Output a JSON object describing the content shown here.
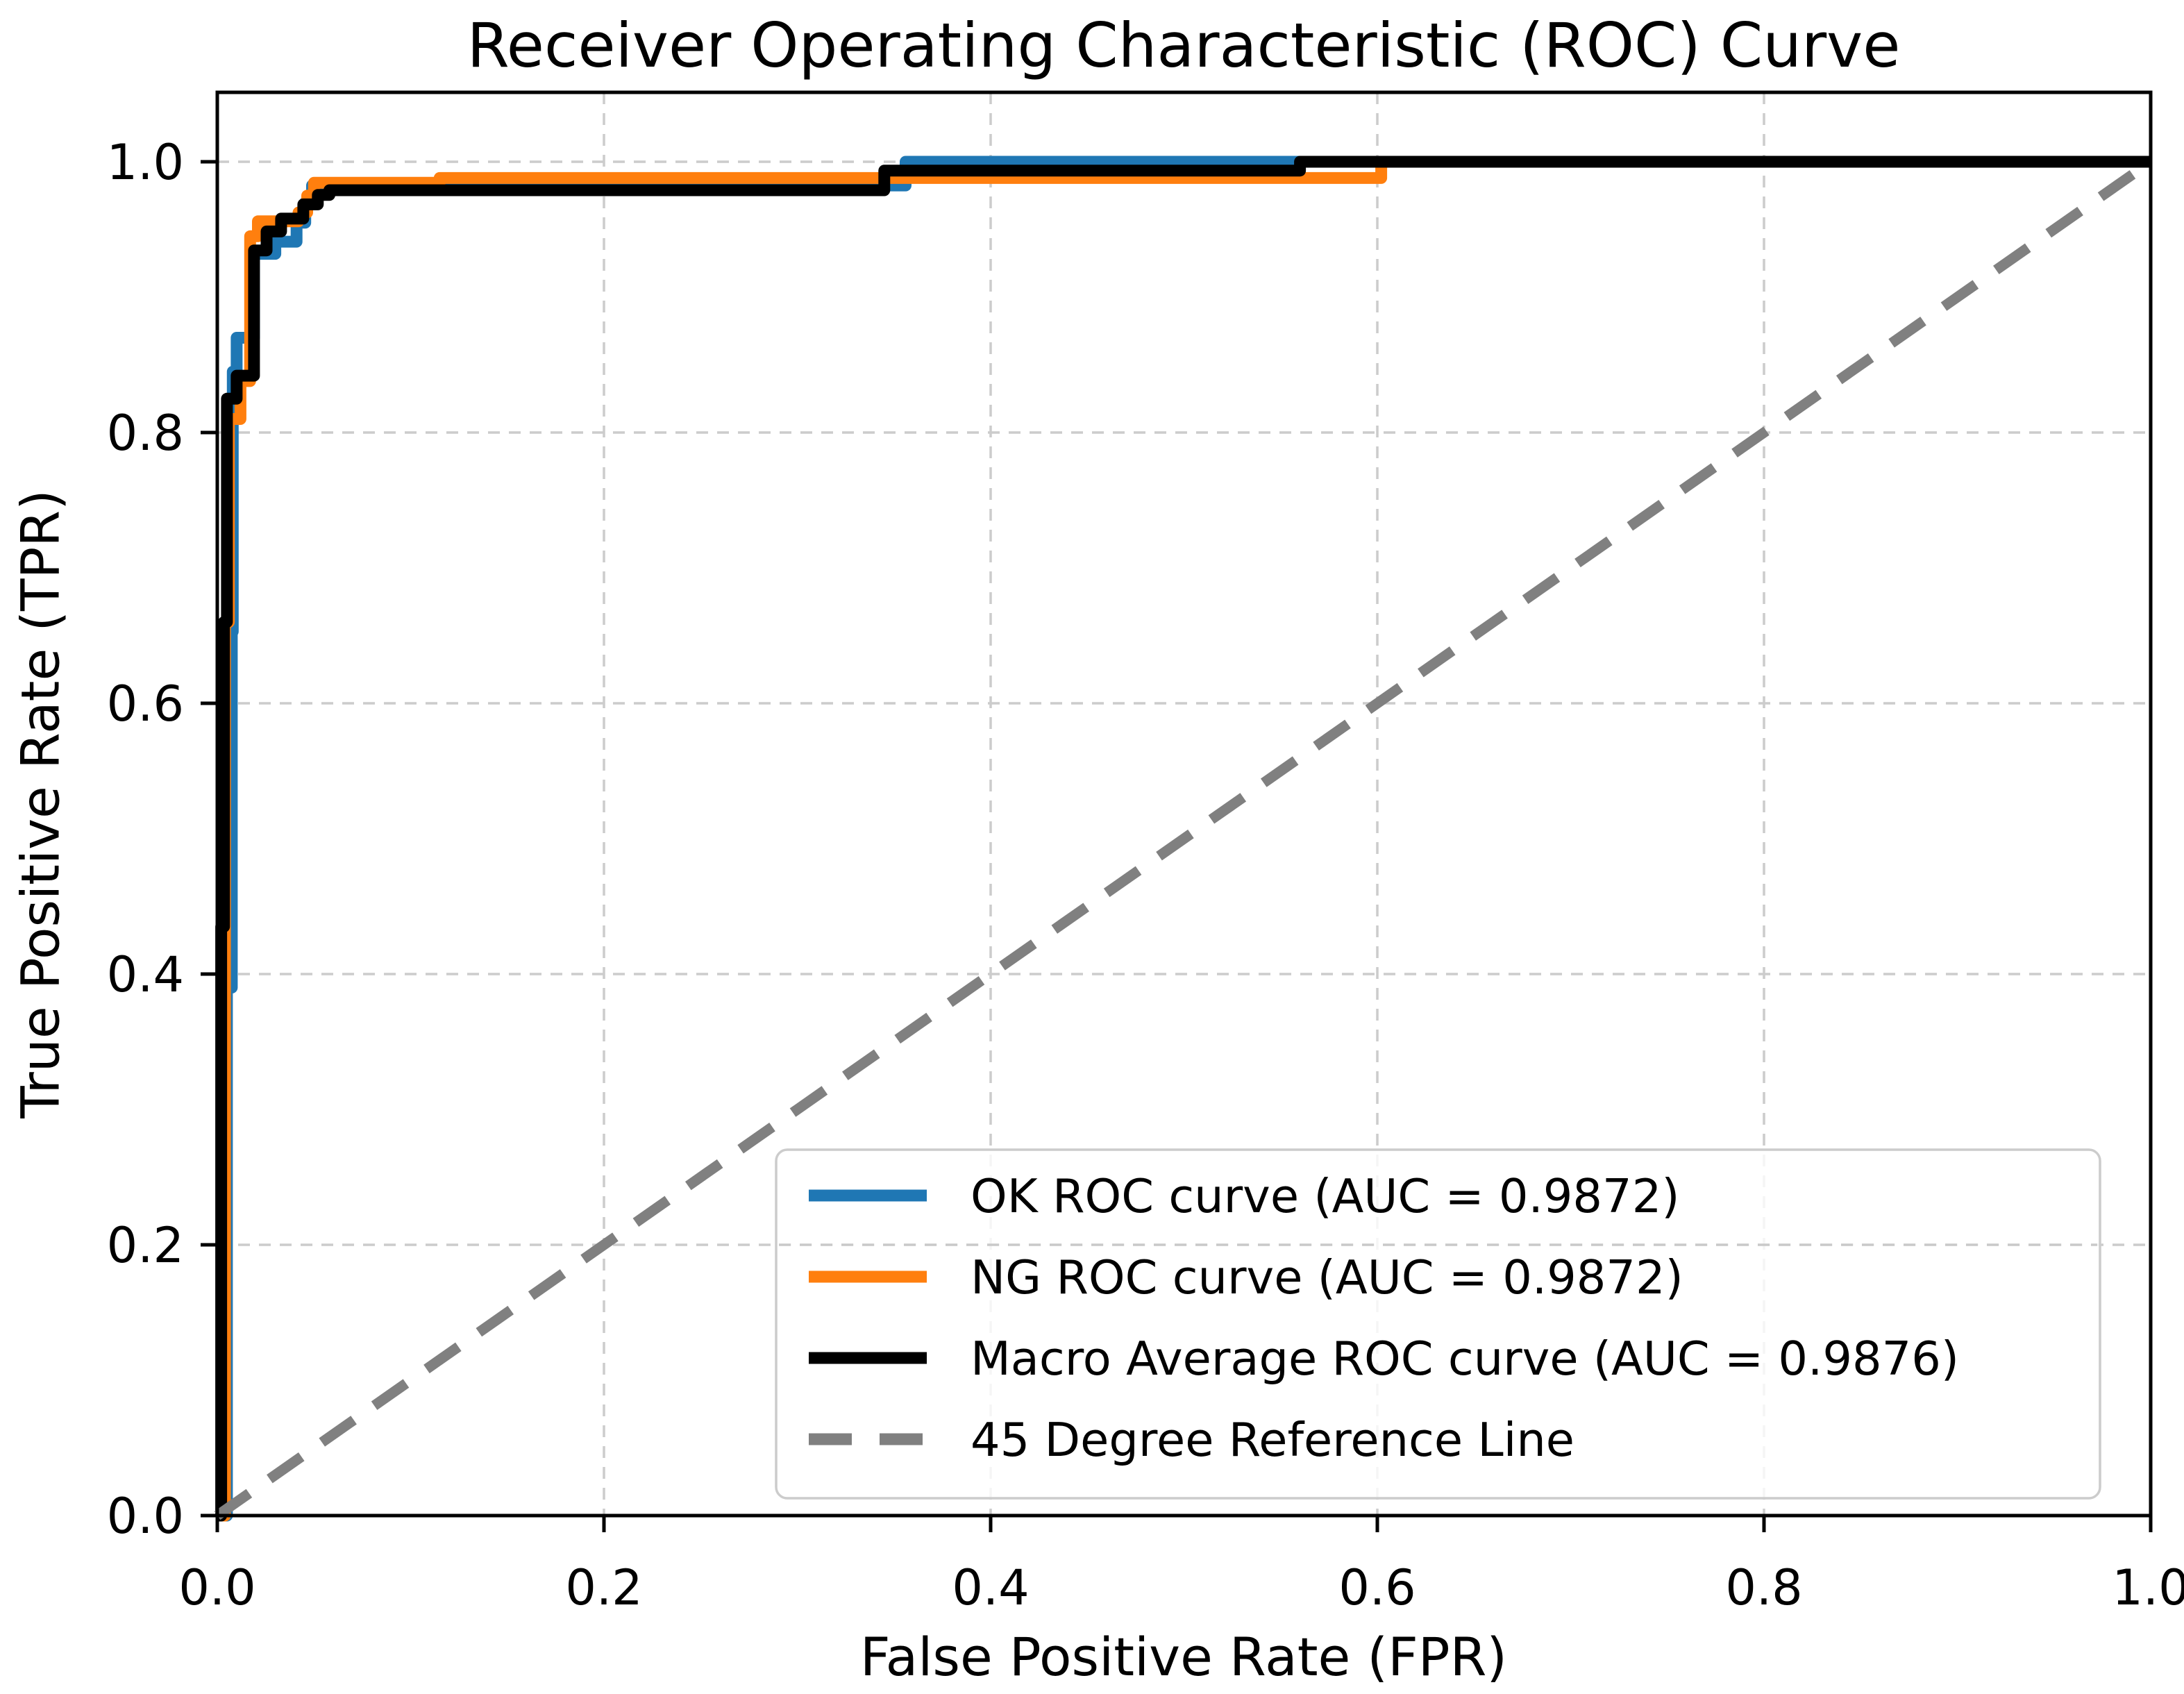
{
  "chart_data": {
    "type": "line",
    "subtype": "roc-step-curves",
    "title": "Receiver Operating Characteristic (ROC) Curve",
    "xlabel": "False Positive Rate (FPR)",
    "ylabel": "True Positive Rate (TPR)",
    "xlim": [
      0.0,
      1.0
    ],
    "ylim": [
      0.0,
      1.05
    ],
    "grid": true,
    "grid_color": "#cccccc",
    "grid_style": "dashed",
    "xticks": {
      "values": [
        0.0,
        0.2,
        0.4,
        0.6,
        0.8,
        1.0
      ],
      "labels": [
        "0.0",
        "0.2",
        "0.4",
        "0.6",
        "0.8",
        "1.0"
      ]
    },
    "yticks": {
      "values": [
        0.0,
        0.2,
        0.4,
        0.6,
        0.8,
        1.0
      ],
      "labels": [
        "0.0",
        "0.2",
        "0.4",
        "0.6",
        "0.8",
        "1.0"
      ]
    },
    "legend": {
      "position": "lower right",
      "border_color": "#cccccc",
      "background": "#ffffff",
      "background_opacity": 0.8
    },
    "series": [
      {
        "id": "ok",
        "name": "OK ROC curve (AUC = 0.9872)",
        "auc": "0.9872",
        "color": "#1f77b4",
        "style": "solid",
        "points": [
          [
            0.0,
            0.0
          ],
          [
            0.005,
            0.0
          ],
          [
            0.005,
            0.39
          ],
          [
            0.0075,
            0.39
          ],
          [
            0.0075,
            0.653
          ],
          [
            0.008,
            0.653
          ],
          [
            0.008,
            0.845
          ],
          [
            0.01,
            0.845
          ],
          [
            0.01,
            0.87
          ],
          [
            0.019,
            0.87
          ],
          [
            0.019,
            0.932
          ],
          [
            0.03,
            0.932
          ],
          [
            0.03,
            0.941
          ],
          [
            0.041,
            0.941
          ],
          [
            0.041,
            0.955
          ],
          [
            0.0455,
            0.955
          ],
          [
            0.0455,
            0.97
          ],
          [
            0.049,
            0.97
          ],
          [
            0.049,
            0.9825
          ],
          [
            0.356,
            0.9825
          ],
          [
            0.356,
            1.0
          ],
          [
            1.0,
            1.0
          ]
        ]
      },
      {
        "id": "ng",
        "name": "NG ROC curve (AUC = 0.9872)",
        "auc": "0.9872",
        "color": "#ff7f0e",
        "style": "solid",
        "points": [
          [
            0.0,
            0.0
          ],
          [
            0.004,
            0.0
          ],
          [
            0.004,
            0.66
          ],
          [
            0.006,
            0.66
          ],
          [
            0.006,
            0.81
          ],
          [
            0.012,
            0.81
          ],
          [
            0.012,
            0.838
          ],
          [
            0.017,
            0.838
          ],
          [
            0.017,
            0.945
          ],
          [
            0.021,
            0.945
          ],
          [
            0.021,
            0.956
          ],
          [
            0.042,
            0.956
          ],
          [
            0.042,
            0.9625
          ],
          [
            0.0465,
            0.9625
          ],
          [
            0.0465,
            0.975
          ],
          [
            0.05,
            0.975
          ],
          [
            0.05,
            0.9845
          ],
          [
            0.115,
            0.9845
          ],
          [
            0.115,
            0.988
          ],
          [
            0.602,
            0.988
          ],
          [
            0.602,
            1.0
          ],
          [
            1.0,
            1.0
          ]
        ]
      },
      {
        "id": "macro",
        "name": "Macro Average ROC curve (AUC = 0.9876)",
        "auc": "0.9876",
        "color": "#000000",
        "style": "solid",
        "points": [
          [
            0.0,
            0.0
          ],
          [
            0.002,
            0.0
          ],
          [
            0.002,
            0.435
          ],
          [
            0.0035,
            0.435
          ],
          [
            0.0035,
            0.66
          ],
          [
            0.005,
            0.66
          ],
          [
            0.005,
            0.825
          ],
          [
            0.01,
            0.825
          ],
          [
            0.01,
            0.842
          ],
          [
            0.019,
            0.842
          ],
          [
            0.019,
            0.9345
          ],
          [
            0.0255,
            0.9345
          ],
          [
            0.0255,
            0.9485
          ],
          [
            0.033,
            0.9485
          ],
          [
            0.033,
            0.958
          ],
          [
            0.0445,
            0.958
          ],
          [
            0.0445,
            0.9685
          ],
          [
            0.052,
            0.9685
          ],
          [
            0.052,
            0.9755
          ],
          [
            0.058,
            0.9755
          ],
          [
            0.058,
            0.979
          ],
          [
            0.345,
            0.979
          ],
          [
            0.345,
            0.9935
          ],
          [
            0.56,
            0.9935
          ],
          [
            0.56,
            1.0
          ],
          [
            1.0,
            1.0
          ]
        ]
      },
      {
        "id": "reference",
        "name": "45 Degree Reference Line",
        "color": "#808080",
        "style": "dashed",
        "points": [
          [
            0.0,
            0.0
          ],
          [
            1.0,
            1.0
          ]
        ]
      }
    ]
  }
}
